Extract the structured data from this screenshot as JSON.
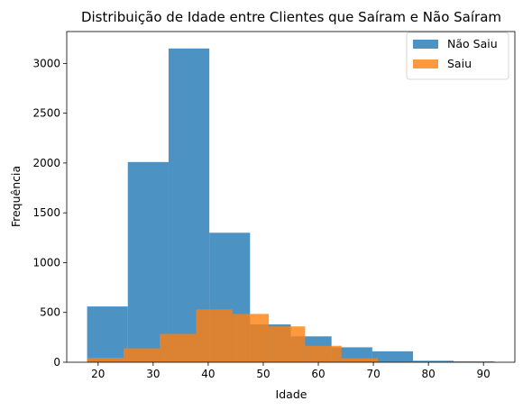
{
  "chart_data": {
    "type": "bar",
    "title": "Distribuição de Idade entre Clientes que Saíram e Não Saíram",
    "xlabel": "Idade",
    "ylabel": "Frequência",
    "xlim": [
      14.3,
      95.7
    ],
    "ylim": [
      0,
      3320
    ],
    "xticks": [
      20,
      30,
      40,
      50,
      60,
      70,
      80,
      90
    ],
    "yticks": [
      0,
      500,
      1000,
      1500,
      2000,
      2500,
      3000
    ],
    "grid": false,
    "legend_position": "top-right",
    "series": [
      {
        "name": "Não Saiu",
        "color": "#1f77b4",
        "opacity": 0.8,
        "bins": [
          {
            "x0": 18.0,
            "x1": 25.4,
            "value": 560
          },
          {
            "x0": 25.4,
            "x1": 32.8,
            "value": 2010
          },
          {
            "x0": 32.8,
            "x1": 40.2,
            "value": 3150
          },
          {
            "x0": 40.2,
            "x1": 47.6,
            "value": 1300
          },
          {
            "x0": 47.6,
            "x1": 55.0,
            "value": 380
          },
          {
            "x0": 55.0,
            "x1": 62.4,
            "value": 260
          },
          {
            "x0": 62.4,
            "x1": 69.8,
            "value": 150
          },
          {
            "x0": 69.8,
            "x1": 77.2,
            "value": 110
          },
          {
            "x0": 77.2,
            "x1": 84.6,
            "value": 15
          },
          {
            "x0": 84.6,
            "x1": 92.0,
            "value": 8
          }
        ]
      },
      {
        "name": "Saiu",
        "color": "#ff7f0e",
        "opacity": 0.8,
        "bins": [
          {
            "x0": 18.0,
            "x1": 24.6,
            "value": 45
          },
          {
            "x0": 24.6,
            "x1": 31.2,
            "value": 140
          },
          {
            "x0": 31.2,
            "x1": 37.8,
            "value": 285
          },
          {
            "x0": 37.8,
            "x1": 44.4,
            "value": 530
          },
          {
            "x0": 44.4,
            "x1": 51.0,
            "value": 485
          },
          {
            "x0": 51.0,
            "x1": 57.6,
            "value": 360
          },
          {
            "x0": 57.6,
            "x1": 64.2,
            "value": 165
          },
          {
            "x0": 64.2,
            "x1": 70.8,
            "value": 40
          },
          {
            "x0": 70.8,
            "x1": 77.4,
            "value": 5
          },
          {
            "x0": 77.4,
            "x1": 84.0,
            "value": 2
          }
        ]
      }
    ]
  }
}
